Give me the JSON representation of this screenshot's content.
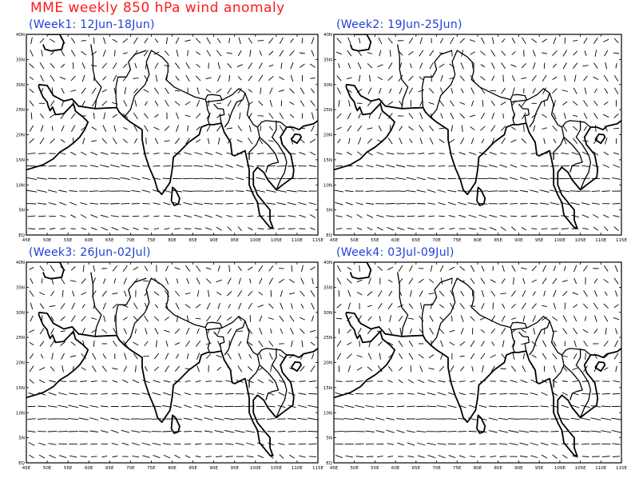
{
  "title": "MME weekly 850 hPa wind anomaly",
  "panels": [
    {
      "id": "week1",
      "title": "(Week1: 12Jun-18Jun)"
    },
    {
      "id": "week2",
      "title": "(Week2: 19Jun-25Jun)"
    },
    {
      "id": "week3",
      "title": "(Week3: 26Jun-02Jul)"
    },
    {
      "id": "week4",
      "title": "(Week4: 03Jul-09Jul)"
    }
  ],
  "axes": {
    "lon_range": [
      45,
      115
    ],
    "lat_range": [
      0,
      40
    ],
    "lon_ticks": [
      "45E",
      "50E",
      "55E",
      "60E",
      "65E",
      "70E",
      "75E",
      "80E",
      "85E",
      "90E",
      "95E",
      "100E",
      "105E",
      "110E",
      "115E"
    ],
    "lat_ticks": [
      "EQ",
      "5N",
      "10N",
      "15N",
      "20N",
      "25N",
      "30N",
      "35N",
      "40N"
    ]
  },
  "colors": {
    "title": "#ff1a1a",
    "panel_title": "#1f3fd6",
    "vectors": "#000000",
    "coastline": "#000000"
  }
}
